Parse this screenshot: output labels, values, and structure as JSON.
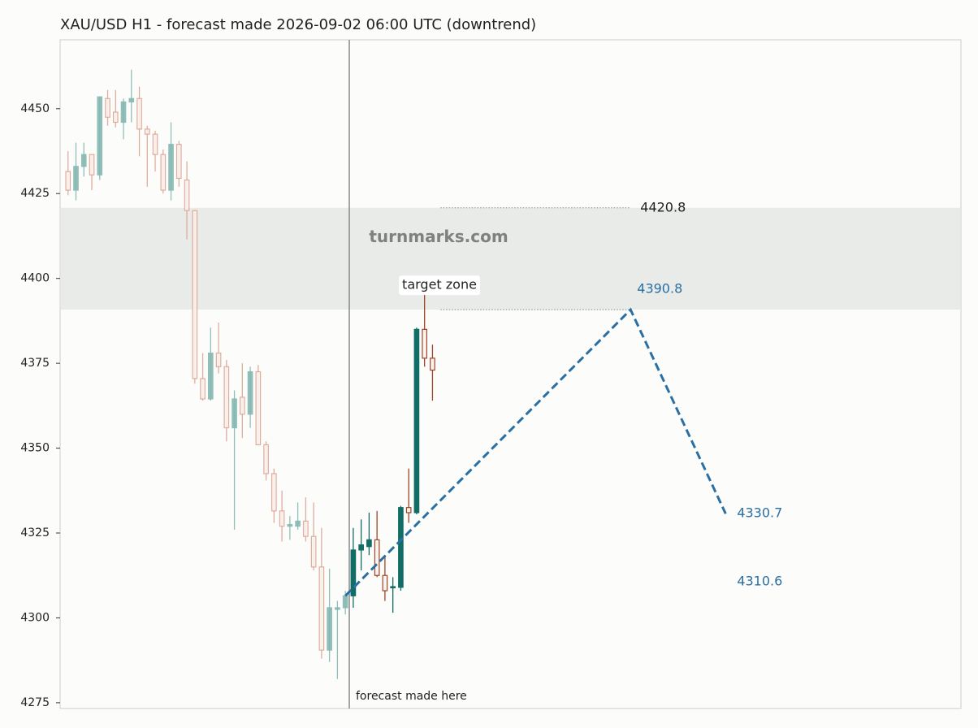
{
  "chart_data": {
    "type": "candlestick",
    "title": "XAU/USD H1 - forecast made 2026-09-02 06:00 UTC (downtrend)",
    "xlim": [
      -1,
      112.7
    ],
    "ylim": [
      4273.3,
      4470.3
    ],
    "yticks": [
      4275,
      4300,
      4325,
      4350,
      4375,
      4400,
      4425,
      4450
    ],
    "grid": false,
    "history": {
      "x": [
        0,
        1,
        2,
        3,
        4,
        5,
        6,
        7,
        8,
        9,
        10,
        11,
        12,
        13,
        14,
        15,
        16,
        17,
        18,
        19,
        20,
        21,
        22,
        23,
        24,
        25,
        26,
        27,
        28,
        29,
        30,
        31,
        32,
        33,
        34,
        35
      ],
      "open": [
        4431.5,
        4426,
        4433,
        4436.5,
        4430.5,
        4453,
        4449,
        4446,
        4452,
        4453,
        4444,
        4442.5,
        4436.5,
        4426,
        4439.5,
        4429,
        4420,
        4370.5,
        4364.5,
        4378,
        4374,
        4356,
        4365,
        4360,
        4372.5,
        4351,
        4342.5,
        4331.5,
        4327,
        4327,
        4328.5,
        4324,
        4315,
        4290.5,
        4302.5,
        4303
      ],
      "high": [
        4437.5,
        4440,
        4440,
        4436.5,
        4453.5,
        4455.5,
        4455.5,
        4453,
        4461.5,
        4456.5,
        4445,
        4443.5,
        4438,
        4446,
        4440.5,
        4434.5,
        4420,
        4378,
        4385.5,
        4387,
        4376,
        4367,
        4375,
        4374,
        4374.5,
        4352,
        4344,
        4337.5,
        4330,
        4334,
        4335.5,
        4334,
        4326.5,
        4314.5,
        4305,
        4308
      ],
      "low": [
        4424.5,
        4423,
        4430,
        4426,
        4429,
        4445,
        4444.5,
        4441,
        4446,
        4436,
        4427,
        4431.5,
        4425,
        4423,
        4427,
        4411.5,
        4369,
        4364,
        4364,
        4372,
        4352,
        4326,
        4353,
        4356,
        4351,
        4340.5,
        4328,
        4322.5,
        4323,
        4326,
        4322.5,
        4314,
        4288,
        4287,
        4282,
        4301
      ],
      "close": [
        4426,
        4433,
        4436.5,
        4430.5,
        4453.5,
        4447.5,
        4446,
        4452,
        4453,
        4444,
        4442.5,
        4436.5,
        4426,
        4439.5,
        4429.5,
        4420,
        4370.5,
        4364.5,
        4378,
        4374,
        4356,
        4364.5,
        4360,
        4372.5,
        4351,
        4342.5,
        4331.5,
        4327,
        4327.5,
        4328.5,
        4324,
        4315,
        4290.5,
        4303,
        4303,
        4306.5
      ]
    },
    "actual": {
      "x": [
        36,
        37,
        38,
        39,
        40,
        41,
        42,
        43,
        44,
        45,
        46
      ],
      "open": [
        4306.5,
        4320,
        4321,
        4323,
        4312.5,
        4309,
        4309,
        4332.5,
        4331,
        4385,
        4376.5
      ],
      "high": [
        4326.5,
        4329,
        4331,
        4331.5,
        4318.5,
        4312,
        4333,
        4344,
        4385.5,
        4395.5,
        4380.5
      ],
      "low": [
        4303,
        4314,
        4318.5,
        4312,
        4305,
        4301.5,
        4308,
        4328,
        4330.5,
        4374,
        4364
      ],
      "close": [
        4320,
        4321.5,
        4323,
        4312.5,
        4308,
        4309.2,
        4332.5,
        4331,
        4385,
        4376.5,
        4373
      ]
    },
    "forecast_made_x": 35.5,
    "forecast_label": "forecast made here",
    "forecast": {
      "x": [
        35,
        71,
        83
      ],
      "values": [
        4306.5,
        4390.8,
        4330.7
      ],
      "color": "#2a6fa3"
    },
    "secondary_target": 4310.6,
    "zone": {
      "label": "target zone",
      "low": 4390.8,
      "high": 4420.8,
      "color": "#e9ebe8"
    },
    "watermark": "turnmarks.com",
    "colors": {
      "history_up": "#86b8b2",
      "history_down": "#dca595",
      "actual_up": "#116d66",
      "actual_down": "#9e4526"
    }
  }
}
